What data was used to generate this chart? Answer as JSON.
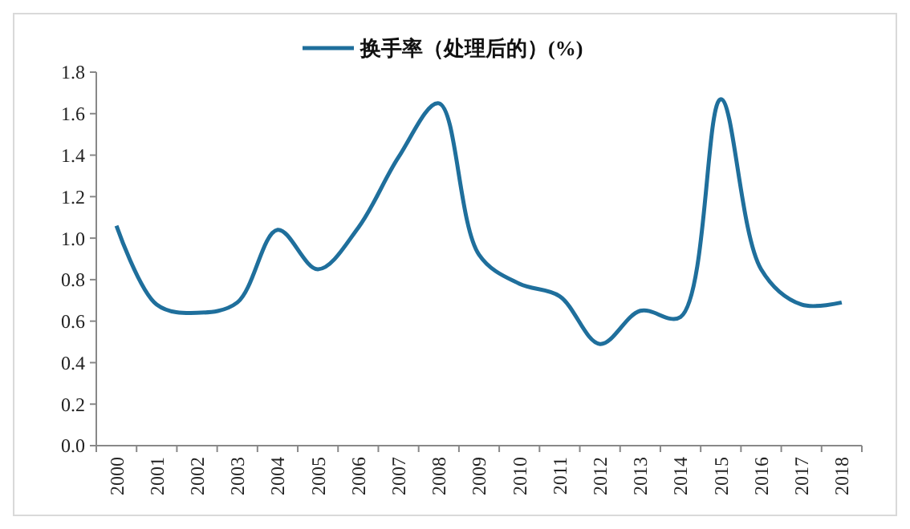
{
  "chart_data": {
    "type": "line",
    "categories": [
      "2000",
      "2001",
      "2002",
      "2003",
      "2004",
      "2005",
      "2006",
      "2007",
      "2008",
      "2009",
      "2010",
      "2011",
      "2012",
      "2013",
      "2014",
      "2015",
      "2016",
      "2017",
      "2018"
    ],
    "series": [
      {
        "name": "换手率（处理后的）(%)",
        "color": "#1f6f9c",
        "values": [
          1.06,
          0.68,
          0.64,
          0.69,
          1.04,
          0.85,
          1.05,
          1.39,
          1.65,
          0.92,
          0.78,
          0.72,
          0.49,
          0.65,
          0.62,
          1.67,
          0.85,
          0.68,
          0.69
        ]
      }
    ],
    "ylim": [
      0,
      1.8
    ],
    "yticks": [
      {
        "value": 0,
        "label": "0.0"
      },
      {
        "value": 0.2,
        "label": "0.2"
      },
      {
        "value": 0.4,
        "label": "0.4"
      },
      {
        "value": 0.6,
        "label": "0.6"
      },
      {
        "value": 0.8,
        "label": "0.8"
      },
      {
        "value": 1,
        "label": "1.0"
      },
      {
        "value": 1.2,
        "label": "1.2"
      },
      {
        "value": 1.4,
        "label": "1.4"
      },
      {
        "value": 1.6,
        "label": "1.6"
      },
      {
        "value": 1.8,
        "label": "1.8"
      }
    ],
    "legend": "top",
    "grid": false,
    "marker": "none",
    "line_style": "solid"
  }
}
